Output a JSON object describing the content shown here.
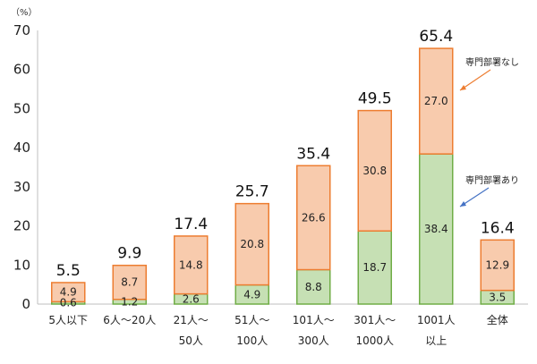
{
  "chart_data": {
    "type": "bar",
    "stacked": true,
    "unit": "（%）",
    "ylim": [
      0,
      70
    ],
    "yticks": [
      0,
      10,
      20,
      30,
      40,
      50,
      60,
      70
    ],
    "categories": [
      [
        "5人以下"
      ],
      [
        "6人～20人"
      ],
      [
        "21人～",
        "50人"
      ],
      [
        "51人～",
        "100人"
      ],
      [
        "101人～",
        "300人"
      ],
      [
        "301人～",
        "1000人"
      ],
      [
        "1001人",
        "以上"
      ],
      [
        "全体"
      ]
    ],
    "series": [
      {
        "name": "専門部署あり",
        "color": "#c6e0b4",
        "edge": "#70ad47",
        "values": [
          0.6,
          1.2,
          2.6,
          4.9,
          8.8,
          18.7,
          38.4,
          3.5
        ]
      },
      {
        "name": "専門部署なし",
        "color": "#f8cbad",
        "edge": "#ed7d31",
        "values": [
          4.9,
          8.7,
          14.8,
          20.8,
          26.6,
          30.8,
          27.0,
          12.9
        ]
      }
    ],
    "totals": [
      5.5,
      9.9,
      17.4,
      25.7,
      35.4,
      49.5,
      65.4,
      16.4
    ],
    "grid": false,
    "legend": "annotations-right"
  }
}
